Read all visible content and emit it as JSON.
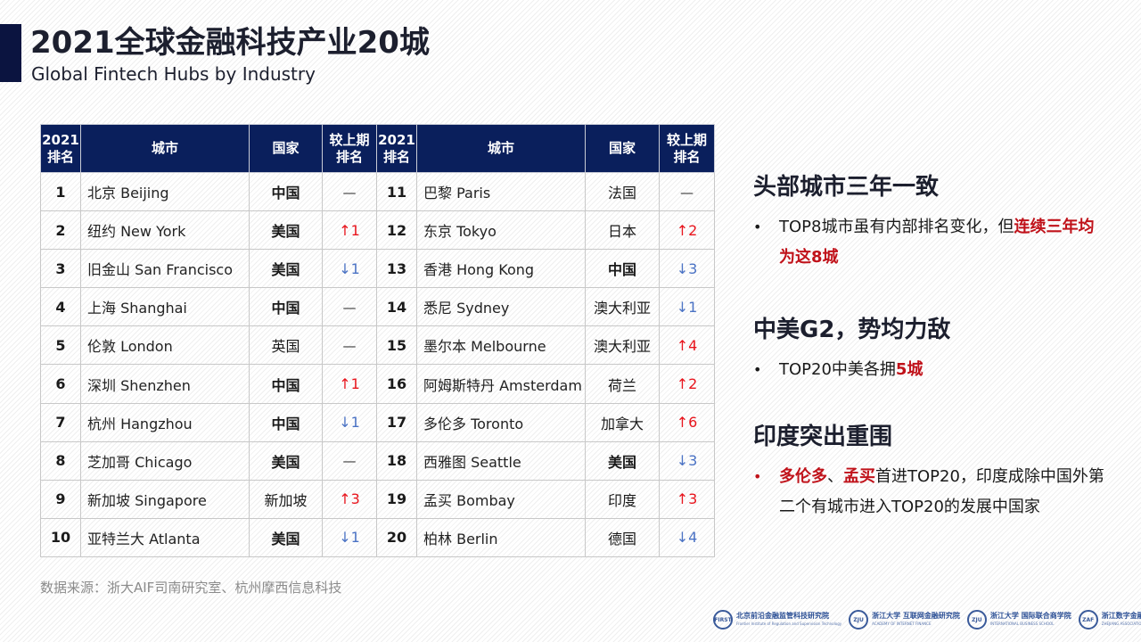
{
  "header": {
    "title": "2021全球金融科技产业20城",
    "subtitle": "Global Fintech Hubs by Industry",
    "accent_color": "#0b1440"
  },
  "table": {
    "header_color": "#0a1f5c",
    "columns": [
      "2021排名",
      "城市",
      "国家",
      "较上期排名",
      "2021排名",
      "城市",
      "国家",
      "较上期排名"
    ],
    "column_headers": {
      "rank_line1": "2021",
      "rank_line2": "排名",
      "city": "城市",
      "country": "国家",
      "change_line1": "较上期",
      "change_line2": "排名"
    },
    "rows": [
      {
        "left": {
          "rank": "1",
          "city": "北京 Beijing",
          "country": "中国",
          "country_bold": true,
          "change": "—",
          "dir": "flat"
        },
        "right": {
          "rank": "11",
          "city": "巴黎 Paris",
          "country": "法国",
          "country_bold": false,
          "change": "—",
          "dir": "flat"
        }
      },
      {
        "left": {
          "rank": "2",
          "city": "纽约 New York",
          "country": "美国",
          "country_bold": true,
          "change": "↑1",
          "dir": "up"
        },
        "right": {
          "rank": "12",
          "city": "东京 Tokyo",
          "country": "日本",
          "country_bold": false,
          "change": "↑2",
          "dir": "up"
        }
      },
      {
        "left": {
          "rank": "3",
          "city": "旧金山 San Francisco",
          "country": "美国",
          "country_bold": true,
          "change": "↓1",
          "dir": "down"
        },
        "right": {
          "rank": "13",
          "city": "香港 Hong Kong",
          "country": "中国",
          "country_bold": true,
          "change": "↓3",
          "dir": "down"
        }
      },
      {
        "left": {
          "rank": "4",
          "city": "上海 Shanghai",
          "country": "中国",
          "country_bold": true,
          "change": "—",
          "dir": "flat"
        },
        "right": {
          "rank": "14",
          "city": "悉尼 Sydney",
          "country": "澳大利亚",
          "country_bold": false,
          "change": "↓1",
          "dir": "down"
        }
      },
      {
        "left": {
          "rank": "5",
          "city": "伦敦 London",
          "country": "英国",
          "country_bold": false,
          "change": "—",
          "dir": "flat"
        },
        "right": {
          "rank": "15",
          "city": "墨尔本 Melbourne",
          "country": "澳大利亚",
          "country_bold": false,
          "change": "↑4",
          "dir": "up"
        }
      },
      {
        "left": {
          "rank": "6",
          "city": "深圳 Shenzhen",
          "country": "中国",
          "country_bold": true,
          "change": "↑1",
          "dir": "up"
        },
        "right": {
          "rank": "16",
          "city": "阿姆斯特丹 Amsterdam",
          "country": "荷兰",
          "country_bold": false,
          "change": "↑2",
          "dir": "up"
        }
      },
      {
        "left": {
          "rank": "7",
          "city": "杭州 Hangzhou",
          "country": "中国",
          "country_bold": true,
          "change": "↓1",
          "dir": "down"
        },
        "right": {
          "rank": "17",
          "city": "多伦多 Toronto",
          "country": "加拿大",
          "country_bold": false,
          "change": "↑6",
          "dir": "up"
        }
      },
      {
        "left": {
          "rank": "8",
          "city": "芝加哥 Chicago",
          "country": "美国",
          "country_bold": true,
          "change": "—",
          "dir": "flat"
        },
        "right": {
          "rank": "18",
          "city": "西雅图 Seattle",
          "country": "美国",
          "country_bold": true,
          "change": "↓3",
          "dir": "down"
        }
      },
      {
        "left": {
          "rank": "9",
          "city": "新加坡 Singapore",
          "country": "新加坡",
          "country_bold": false,
          "change": "↑3",
          "dir": "up"
        },
        "right": {
          "rank": "19",
          "city": "孟买 Bombay",
          "country": "印度",
          "country_bold": false,
          "change": "↑3",
          "dir": "up"
        }
      },
      {
        "left": {
          "rank": "10",
          "city": "亚特兰大 Atlanta",
          "country": "美国",
          "country_bold": true,
          "change": "↓1",
          "dir": "down"
        },
        "right": {
          "rank": "20",
          "city": "柏林 Berlin",
          "country": "德国",
          "country_bold": false,
          "change": "↓4",
          "dir": "down"
        }
      }
    ],
    "colors": {
      "up": "#e8141c",
      "down": "#4a72c4",
      "flat": "#333333"
    }
  },
  "insights": [
    {
      "title": "头部城市三年一致",
      "bullet_red": false,
      "parts": [
        {
          "text": "TOP8城市虽有内部排名变化，但",
          "hl": false
        },
        {
          "text": "连续三年均为这8城",
          "hl": true
        }
      ]
    },
    {
      "title": "中美G2，势均力敌",
      "bullet_red": false,
      "parts": [
        {
          "text": "TOP20中美各拥",
          "hl": false
        },
        {
          "text": "5城",
          "hl": true
        }
      ]
    },
    {
      "title": "印度突出重围",
      "bullet_red": true,
      "parts": [
        {
          "text": "多伦多",
          "hl": true
        },
        {
          "text": "、",
          "hl": false
        },
        {
          "text": "孟买",
          "hl": true
        },
        {
          "text": "首进TOP20，印度成除中国外第二个有城市进入TOP20的发展中国家",
          "hl": false
        }
      ]
    }
  ],
  "highlight_color": "#c0121a",
  "footer": {
    "source": "数据来源：浙大AIF司南研究室、杭州摩西信息科技",
    "logos": [
      {
        "mark": "FIRST",
        "cn": "北京前沿金融监管科技研究院",
        "en": "Frontier Institute of Regulation and Supervision Technology"
      },
      {
        "mark": "ZJU",
        "cn": "浙江大学 互联网金融研究院",
        "en": "ACADEMY OF INTERNET FINANCE"
      },
      {
        "mark": "ZJU",
        "cn": "浙江大学 国际联合商学院",
        "en": "INTERNATIONAL BUSINESS SCHOOL"
      },
      {
        "mark": "ZAF",
        "cn": "浙江数字金融科技联合会",
        "en": "ZHEJIANG ASSOCIATION OF FINTECH"
      }
    ]
  }
}
